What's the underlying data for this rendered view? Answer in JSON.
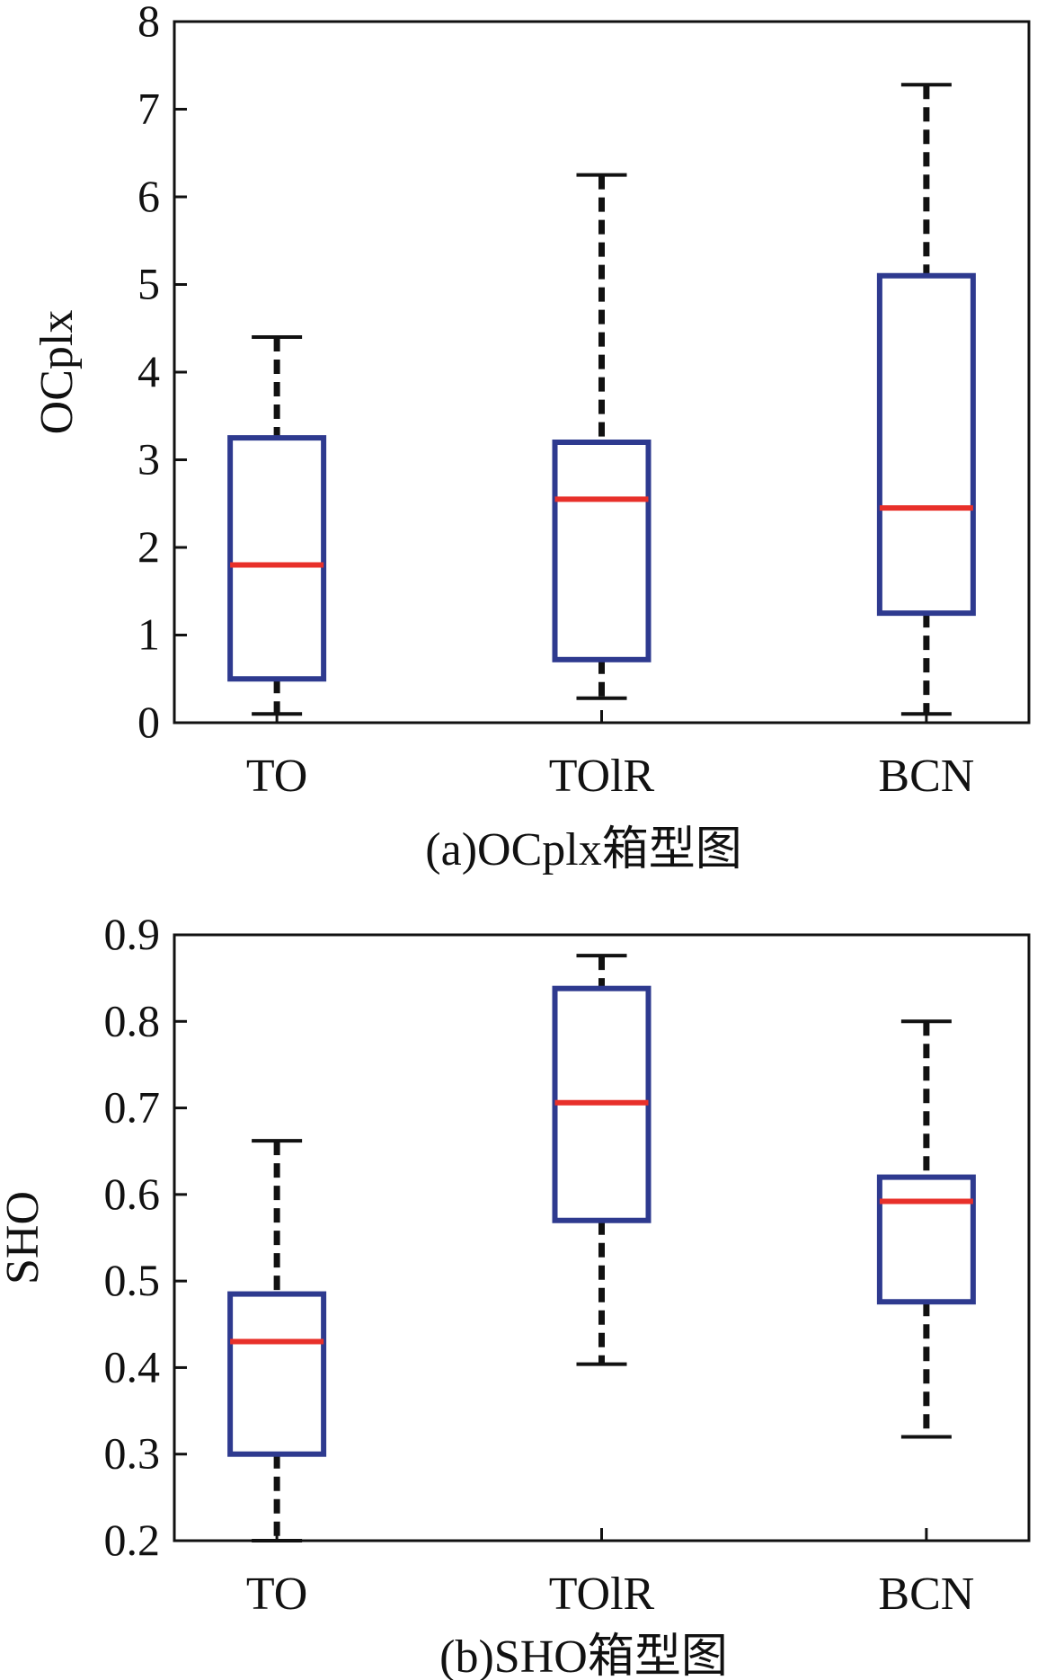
{
  "chart_data": [
    {
      "type": "box",
      "caption": "(a)OCplx箱型图",
      "ylabel": "OCplx",
      "xlabel": "",
      "ylim": [
        0,
        8
      ],
      "yticks": [
        "0",
        "1",
        "2",
        "3",
        "4",
        "5",
        "6",
        "7",
        "8"
      ],
      "categories": [
        "TO",
        "TOlR",
        "BCN"
      ],
      "boxes": [
        {
          "label": "TO",
          "min": 0.1,
          "q1": 0.5,
          "median": 1.8,
          "q3": 3.25,
          "max": 4.4
        },
        {
          "label": "TOlR",
          "min": 0.28,
          "q1": 0.72,
          "median": 2.55,
          "q3": 3.2,
          "max": 6.25
        },
        {
          "label": "BCN",
          "min": 0.1,
          "q1": 1.25,
          "median": 2.45,
          "q3": 5.1,
          "max": 7.28
        }
      ]
    },
    {
      "type": "box",
      "caption": "(b)SHO箱型图",
      "ylabel": "SHO",
      "xlabel": "",
      "ylim": [
        0.2,
        0.9
      ],
      "yticks": [
        "0.2",
        "0.3",
        "0.4",
        "0.5",
        "0.6",
        "0.7",
        "0.8",
        "0.9"
      ],
      "categories": [
        "TO",
        "TOlR",
        "BCN"
      ],
      "boxes": [
        {
          "label": "TO",
          "min": 0.2,
          "q1": 0.3,
          "median": 0.43,
          "q3": 0.485,
          "max": 0.662
        },
        {
          "label": "TOlR",
          "min": 0.404,
          "q1": 0.57,
          "median": 0.706,
          "q3": 0.838,
          "max": 0.876
        },
        {
          "label": "BCN",
          "min": 0.32,
          "q1": 0.476,
          "median": 0.592,
          "q3": 0.62,
          "max": 0.8
        }
      ]
    }
  ],
  "colors": {
    "box": "#2e3a8f",
    "median": "#e8302a",
    "whisker": "#111111",
    "axis": "#111111"
  }
}
